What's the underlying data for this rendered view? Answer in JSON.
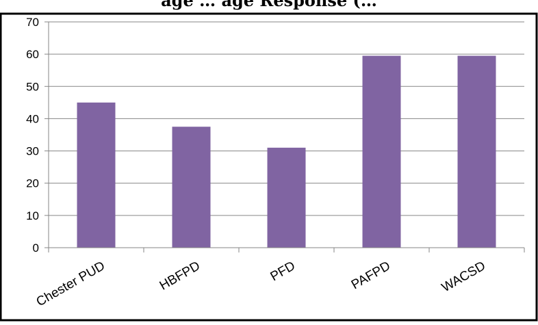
{
  "chart_data": {
    "type": "bar",
    "title": "",
    "title_fragment": "age … age Response (…",
    "categories": [
      "Chester PUD",
      "HBFPD",
      "PFD",
      "PAFPD",
      "WACSD"
    ],
    "series": [
      {
        "values": [
          45,
          37.5,
          31,
          59.5,
          59.5
        ]
      }
    ],
    "ylim": [
      0,
      70
    ],
    "yticks": [
      0,
      10,
      20,
      30,
      40,
      50,
      60,
      70
    ],
    "grid": true,
    "legend": "none",
    "bar_color": "#8064a2"
  }
}
